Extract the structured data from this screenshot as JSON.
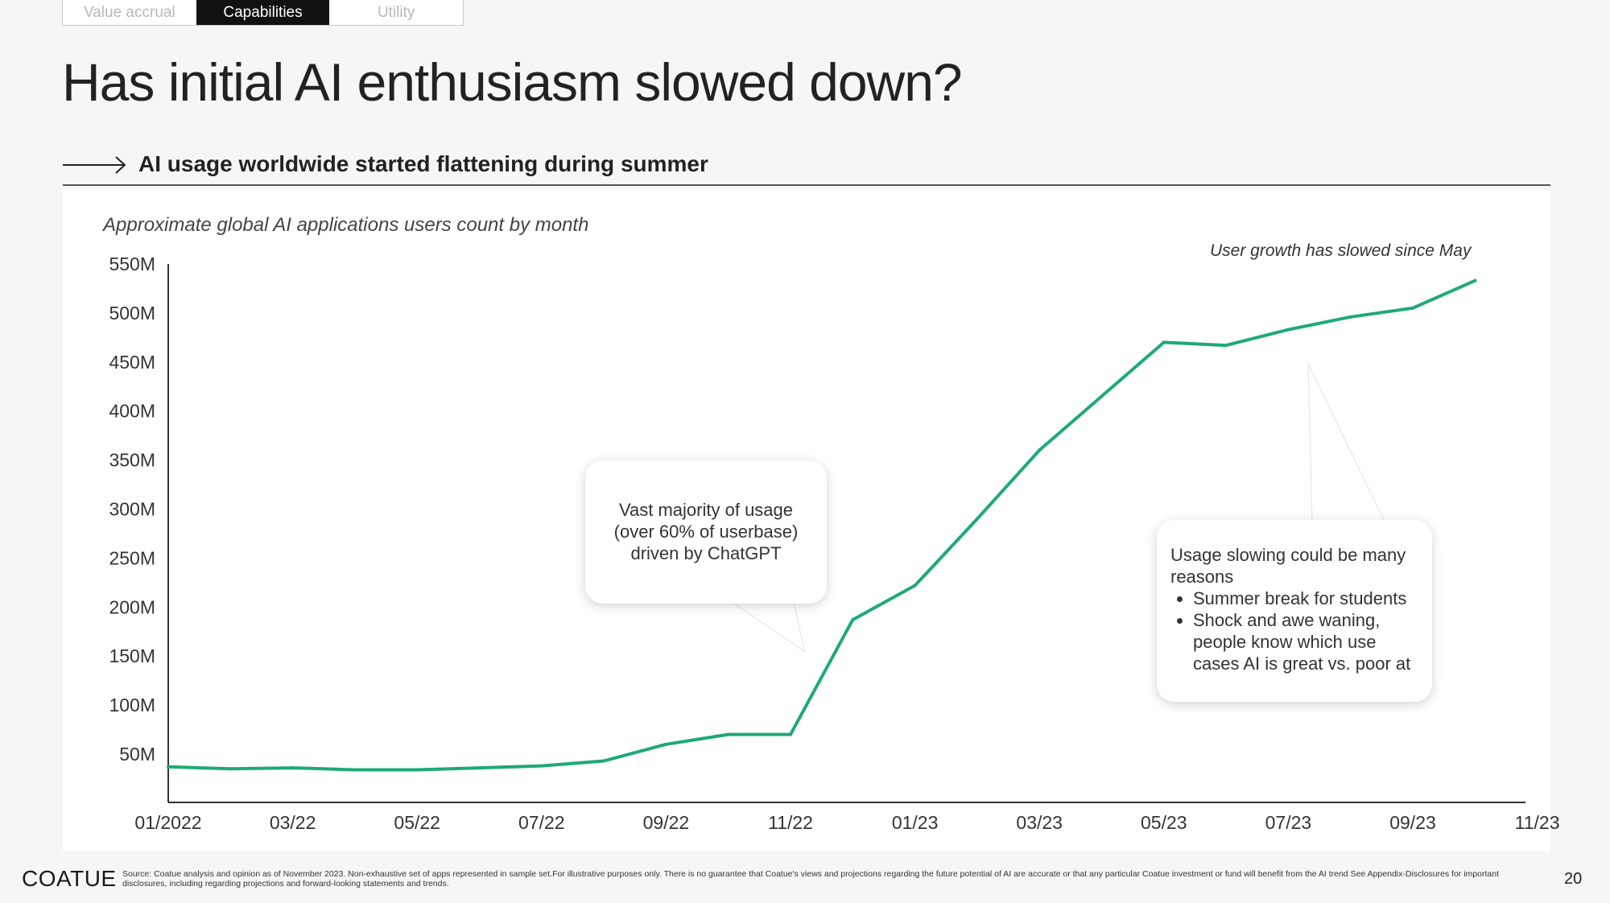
{
  "tabs": [
    {
      "label": "Value accrual"
    },
    {
      "label": "Capabilities"
    },
    {
      "label": "Utility"
    }
  ],
  "title": "Has initial AI enthusiasm slowed down?",
  "subtitle": "AI usage worldwide started flattening during summer",
  "chart_caption": "Approximate global AI applications users count by month",
  "annotation_top": "User growth has slowed since May",
  "callout_chatgpt": "Vast majority of usage (over 60% of userbase) driven by ChatGPT",
  "callout_slowing": {
    "intro": "Usage slowing could be many reasons",
    "bullets": [
      "Summer break for students",
      "Shock and awe waning, people know which use cases AI is great vs. poor at"
    ]
  },
  "chart_data": {
    "type": "line",
    "title": "Approximate global AI applications users count by month",
    "x": [
      "01/2022",
      "02/22",
      "03/22",
      "04/22",
      "05/22",
      "06/22",
      "07/22",
      "08/22",
      "09/22",
      "10/22",
      "11/22",
      "12/22",
      "01/23",
      "02/23",
      "03/23",
      "04/23",
      "05/23",
      "06/23",
      "07/23",
      "08/23",
      "09/23",
      "10/23"
    ],
    "x_tick_labels": [
      "01/2022",
      "03/22",
      "05/22",
      "07/22",
      "09/22",
      "11/22",
      "01/23",
      "03/23",
      "05/23",
      "07/23",
      "09/23",
      "11/23"
    ],
    "y_tick_labels": [
      "550M",
      "500M",
      "450M",
      "400M",
      "350M",
      "300M",
      "250M",
      "200M",
      "150M",
      "100M",
      "50M"
    ],
    "series": [
      {
        "values_millions": [
          37,
          35,
          36,
          34,
          34,
          36,
          38,
          43,
          60,
          70,
          70,
          187,
          222,
          290,
          360,
          415,
          470,
          467,
          483,
          496,
          505,
          533
        ]
      }
    ],
    "ylim": [
      0,
      550
    ],
    "grid": false,
    "color": "#1eaa73"
  },
  "footer": {
    "logo": "COATUE",
    "source": "Source: Coatue analysis and opinion as of November 2023. Non-exhaustive set of apps represented in sample set.For illustrative purposes only. There is no guarantee that Coatue's views and projections regarding the future potential of AI are accurate or that any particular Coatue investment or fund will benefit from the AI trend See Appendix-Disclosures for important disclosures, including regarding projections and forward-looking statements and trends.",
    "page_number": "20"
  }
}
